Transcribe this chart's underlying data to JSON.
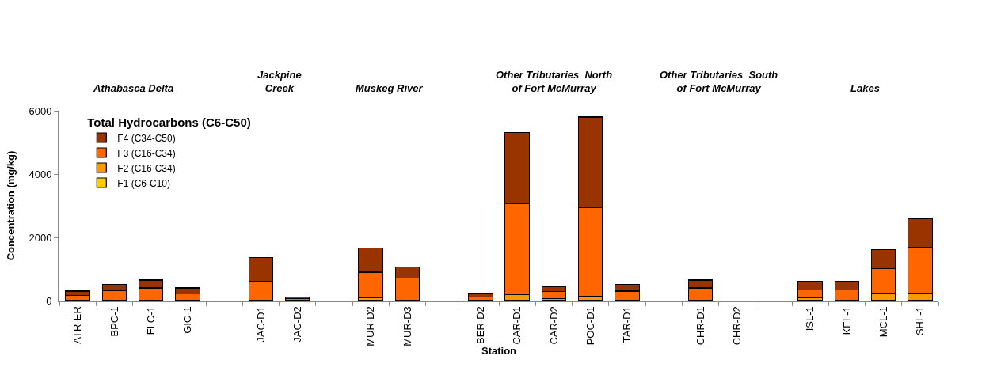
{
  "chart_data": {
    "type": "bar",
    "stacked": true,
    "xlabel": "Station",
    "ylabel": "Concentration (mg/kg)",
    "legend_title": "Total Hydrocarbons (C6-C50)",
    "legend": "top left",
    "categories": [
      "ATR-ER",
      "BPC-1",
      "FLC-1",
      "GIC-1",
      null,
      "JAC-D1",
      "JAC-D2",
      null,
      "MUR-D2",
      "MUR-D3",
      null,
      "BER-D2",
      "CAR-D1",
      "CAR-D2",
      "POC-D1",
      "TAR-D1",
      null,
      "CHR-D1",
      "CHR-D2",
      null,
      "ISL-1",
      "KEL-1",
      "MCL-1",
      "SHL-1"
    ],
    "series": [
      {
        "name": "F1 (C6-C10)",
        "color": "#ffcc00",
        "values": [
          null,
          null,
          null,
          null,
          null,
          null,
          null,
          null,
          null,
          null,
          null,
          null,
          null,
          null,
          null,
          null,
          null,
          null,
          null,
          null,
          null,
          null,
          null,
          null
        ]
      },
      {
        "name": "F2 (C16-C34)",
        "color": "#ff9900",
        "values": [
          20,
          null,
          null,
          null,
          null,
          null,
          null,
          null,
          80,
          null,
          null,
          null,
          200,
          70,
          130,
          null,
          null,
          null,
          null,
          null,
          90,
          null,
          240,
          240
        ]
      },
      {
        "name": "F3 (C16-C34)",
        "color": "#ff6600",
        "values": [
          150,
          320,
          400,
          210,
          null,
          610,
          70,
          null,
          820,
          720,
          null,
          120,
          2870,
          210,
          2800,
          300,
          null,
          400,
          null,
          null,
          250,
          340,
          770,
          1440
        ]
      },
      {
        "name": "F4 (C34-C50)",
        "color": "#993300",
        "values": [
          130,
          190,
          250,
          190,
          null,
          750,
          40,
          null,
          760,
          340,
          null,
          120,
          2250,
          160,
          2870,
          210,
          null,
          250,
          null,
          null,
          280,
          280,
          610,
          920
        ]
      }
    ],
    "ylim": [
      0,
      6000
    ],
    "yticks": [
      0,
      2000,
      4000,
      6000
    ],
    "annotations": [
      "Athabasca Delta",
      "Jackpine\nCreek",
      "Muskeg River",
      "Other Tributaries  North\nof Fort McMurray",
      "Other Tributaries  South\nof Fort McMurray",
      "Lakes"
    ]
  }
}
